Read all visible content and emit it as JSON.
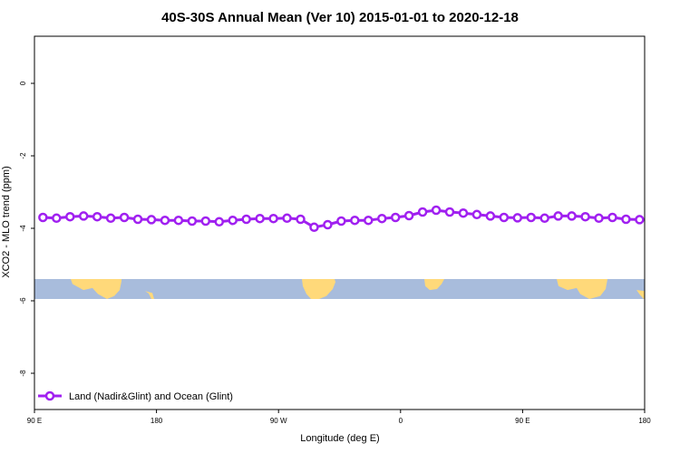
{
  "chart_data": {
    "type": "line",
    "title": "40S-30S Annual Mean (Ver 10)   2015-01-01 to 2020-12-18",
    "xlabel": "Longitude (deg E)",
    "ylabel": "XCO2 - MLO trend (ppm)",
    "xlim": [
      90,
      450
    ],
    "ylim": [
      -9.0,
      1.3
    ],
    "x_ticks": [
      {
        "value": 90,
        "label": "90 E"
      },
      {
        "value": 162,
        "label": "180"
      },
      {
        "value": 234,
        "label": "90 W"
      },
      {
        "value": 306,
        "label": "0"
      },
      {
        "value": 378,
        "label": "90 E"
      },
      {
        "value": 450,
        "label": "180"
      }
    ],
    "y_ticks": [
      {
        "value": 0,
        "label": "0"
      },
      {
        "value": -2,
        "label": "-2"
      },
      {
        "value": -4,
        "label": "-4"
      },
      {
        "value": -6,
        "label": "-6"
      },
      {
        "value": -8,
        "label": "-8"
      }
    ],
    "grid": false,
    "legend_position": "bottom-left",
    "series": [
      {
        "name": "Land (Nadir&Glint) and Ocean (Glint)",
        "color": "#a020f0",
        "x": [
          95,
          103,
          111,
          119,
          127,
          135,
          143,
          151,
          159,
          167,
          175,
          183,
          191,
          199,
          207,
          215,
          223,
          231,
          239,
          247,
          255,
          263,
          271,
          279,
          287,
          295,
          303,
          311,
          319,
          327,
          335,
          343,
          351,
          359,
          367,
          375,
          383,
          391,
          399,
          407,
          415,
          423,
          431,
          439,
          447
        ],
        "y": [
          -3.7,
          -3.72,
          -3.68,
          -3.66,
          -3.68,
          -3.72,
          -3.7,
          -3.75,
          -3.76,
          -3.78,
          -3.78,
          -3.8,
          -3.8,
          -3.82,
          -3.78,
          -3.75,
          -3.73,
          -3.73,
          -3.72,
          -3.75,
          -3.97,
          -3.9,
          -3.8,
          -3.78,
          -3.78,
          -3.73,
          -3.7,
          -3.65,
          -3.55,
          -3.5,
          -3.55,
          -3.58,
          -3.62,
          -3.66,
          -3.7,
          -3.71,
          -3.7,
          -3.72,
          -3.66,
          -3.66,
          -3.68,
          -3.72,
          -3.7,
          -3.75,
          -3.76
        ]
      }
    ],
    "map_band": {
      "y_range": [
        -5.95,
        -5.4
      ],
      "ocean_color": "#a8bcdc",
      "land_color": "#ffd97a"
    }
  }
}
